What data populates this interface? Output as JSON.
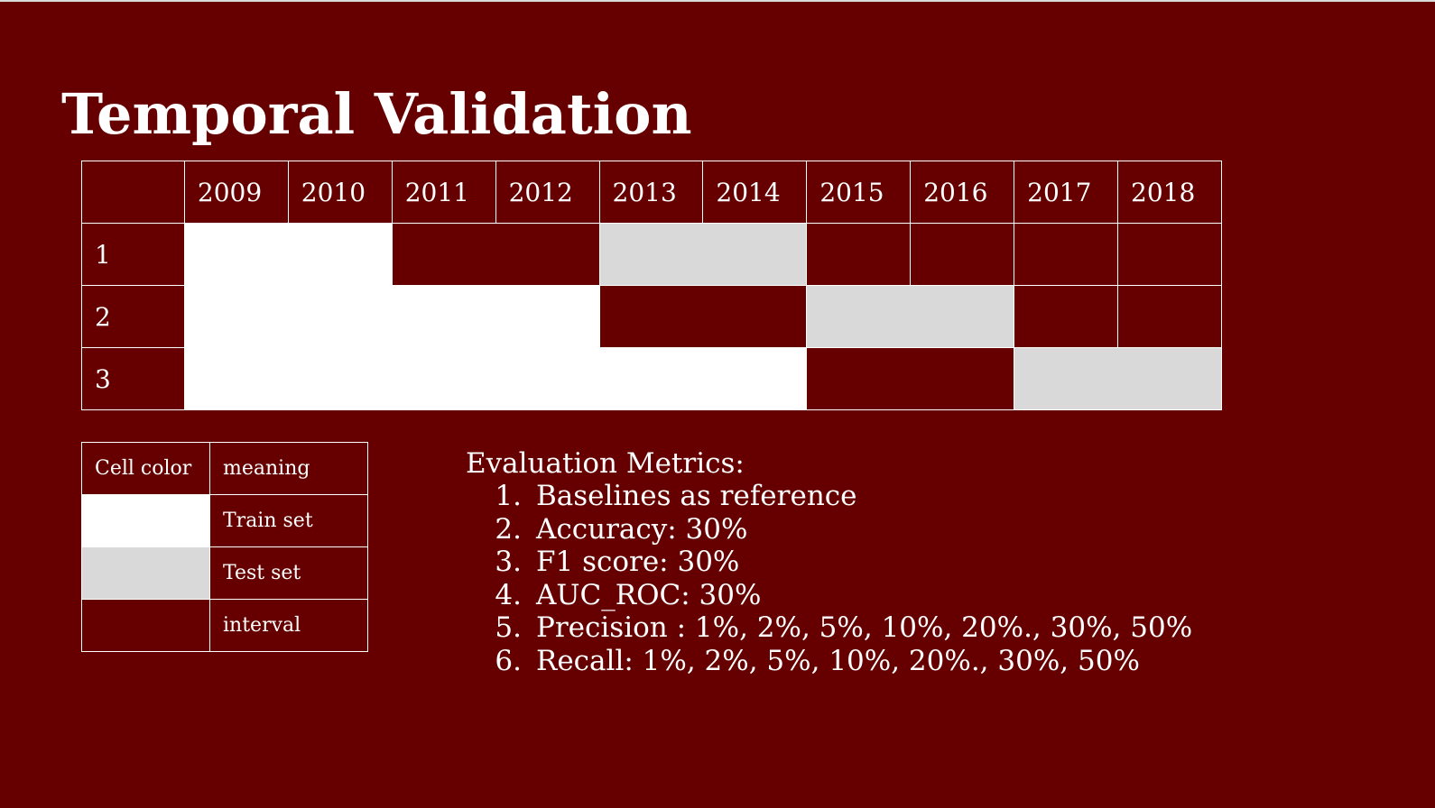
{
  "title": "Temporal Validation",
  "colors": {
    "background": "#660000",
    "train": "#ffffff",
    "test": "#d9d9d9",
    "interval": "#660000",
    "text": "#ffffff"
  },
  "timeline": {
    "years": [
      "2009",
      "2010",
      "2011",
      "2012",
      "2013",
      "2014",
      "2015",
      "2016",
      "2017",
      "2018"
    ],
    "rows": [
      {
        "label": "1",
        "segments": [
          {
            "type": "train",
            "years": 2
          },
          {
            "type": "interval",
            "years": 2
          },
          {
            "type": "test",
            "years": 2
          },
          {
            "type": "blank",
            "years": 1
          },
          {
            "type": "blank",
            "years": 1
          },
          {
            "type": "blank",
            "years": 1
          },
          {
            "type": "blank",
            "years": 1
          }
        ]
      },
      {
        "label": "2",
        "segments": [
          {
            "type": "train",
            "years": 4
          },
          {
            "type": "interval",
            "years": 2
          },
          {
            "type": "test",
            "years": 2
          },
          {
            "type": "blank",
            "years": 1
          },
          {
            "type": "blank",
            "years": 1
          }
        ]
      },
      {
        "label": "3",
        "segments": [
          {
            "type": "train",
            "years": 6
          },
          {
            "type": "interval",
            "years": 2
          },
          {
            "type": "test",
            "years": 2
          }
        ]
      }
    ]
  },
  "legend": {
    "header_color": "Cell color",
    "header_meaning": "meaning",
    "items": [
      {
        "type": "train",
        "meaning": "Train set"
      },
      {
        "type": "test",
        "meaning": "Test set"
      },
      {
        "type": "interval",
        "meaning": "interval"
      }
    ]
  },
  "metrics": {
    "heading": "Evaluation Metrics:",
    "items": [
      {
        "num": "1.",
        "text": "Baselines as reference"
      },
      {
        "num": "2.",
        "text": "Accuracy: 30%"
      },
      {
        "num": "3.",
        "text": "F1 score: 30%"
      },
      {
        "num": "4.",
        "text": "AUC_ROC: 30%"
      },
      {
        "num": "5.",
        "text": "Precision : 1%, 2%, 5%, 10%, 20%., 30%, 50%"
      },
      {
        "num": "6.",
        "text": "Recall: 1%, 2%, 5%, 10%, 20%., 30%, 50%"
      }
    ]
  }
}
